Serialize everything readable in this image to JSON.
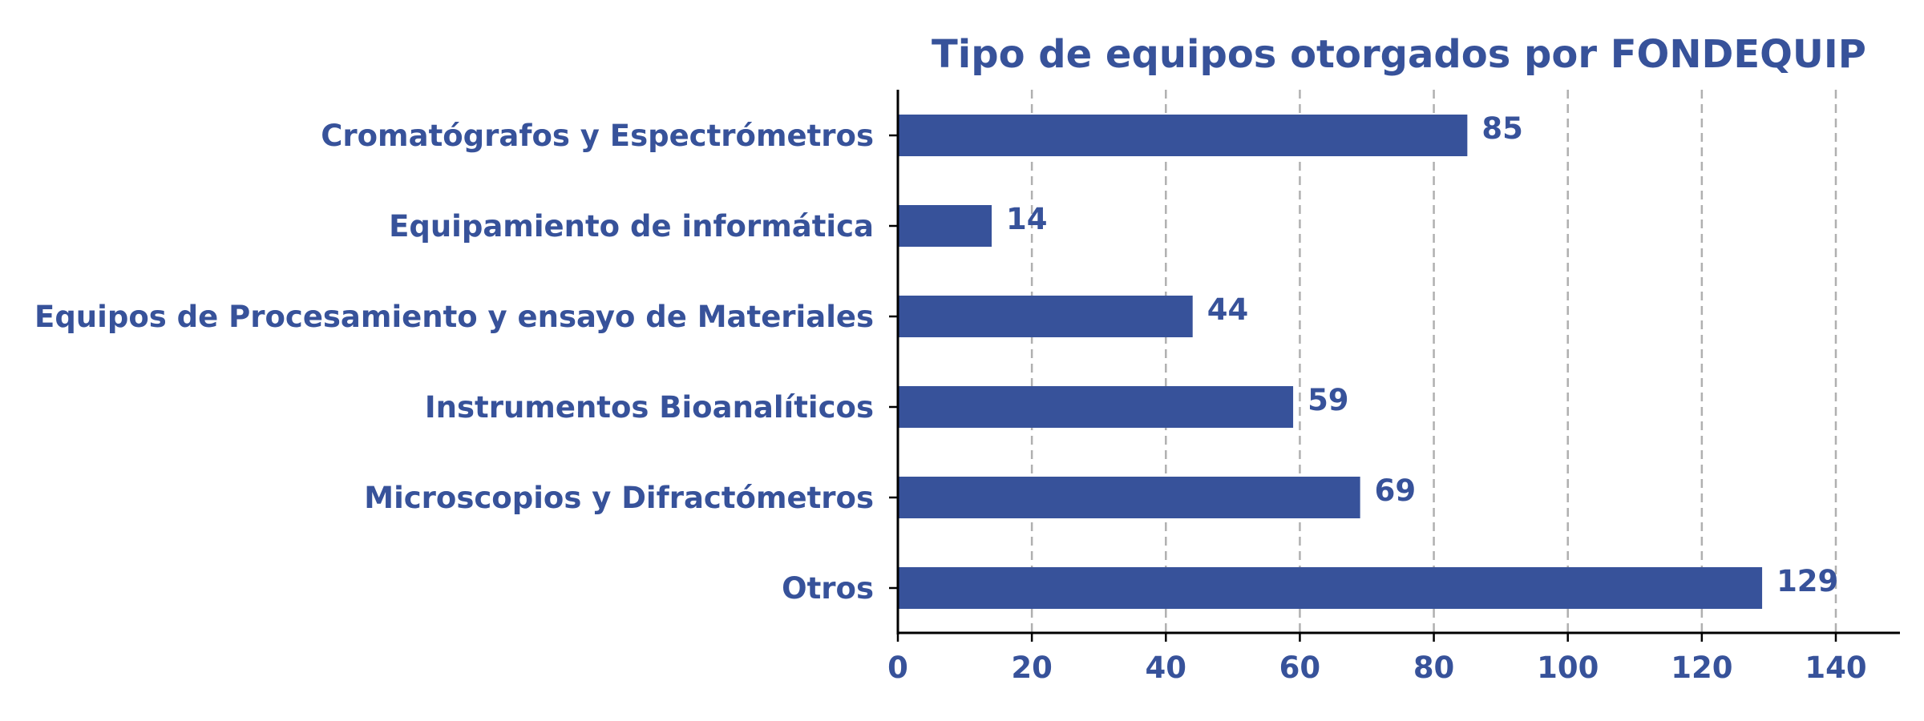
{
  "chart_data": {
    "type": "bar",
    "orientation": "horizontal",
    "title": "Tipo de equipos otorgados por FONDEQUIP",
    "xlabel": "",
    "ylabel": "",
    "categories": [
      "Cromatógrafos y Espectrómetros",
      "Equipamiento de informática",
      "Equipos de Procesamiento y ensayo de Materiales",
      "Instrumentos Bioanalíticos",
      "Microscopios y Difractómetros",
      "Otros"
    ],
    "values": [
      85,
      14,
      44,
      59,
      69,
      129
    ],
    "value_labels": [
      "85",
      "14",
      "44",
      "59",
      "69",
      "129"
    ],
    "xlim": [
      0,
      150
    ],
    "x_ticks": [
      0,
      20,
      40,
      60,
      80,
      100,
      120,
      140
    ],
    "x_tick_labels": [
      "0",
      "20",
      "40",
      "60",
      "80",
      "100",
      "120",
      "140"
    ],
    "grid": "vertical dashed",
    "legend": "none",
    "colors": {
      "bar": "#37529a",
      "text": "#37529a",
      "grid": "#b0b0b0",
      "axis": "#000000"
    }
  }
}
